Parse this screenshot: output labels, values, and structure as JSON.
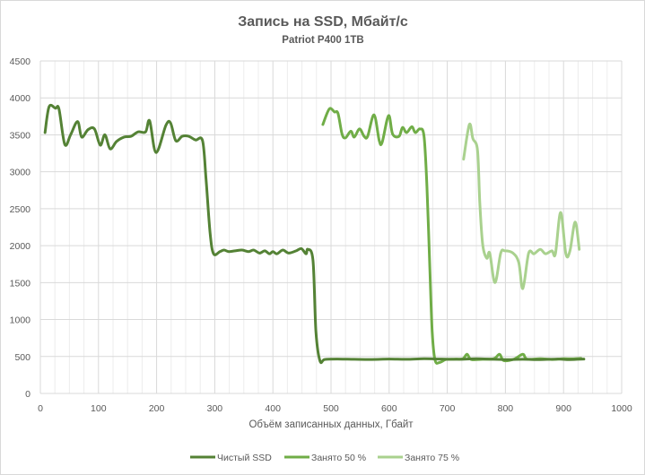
{
  "chart_data": {
    "type": "line",
    "title": "Запись на SSD, Мбайт/с",
    "subtitle": "Patriot P400  1TB",
    "xlabel": "Объём записанных данных, Гбайт",
    "ylabel": "",
    "xlim": [
      0,
      1000
    ],
    "ylim": [
      0,
      4500
    ],
    "xticks": [
      0,
      100,
      200,
      300,
      400,
      500,
      600,
      700,
      800,
      900,
      1000
    ],
    "yticks": [
      0,
      500,
      1000,
      1500,
      2000,
      2500,
      3000,
      3500,
      4000,
      4500
    ],
    "grid": true,
    "legend_position": "bottom",
    "series": [
      {
        "name": "Чистый SSD",
        "color": "#548235",
        "points": [
          [
            8,
            3530
          ],
          [
            15,
            3880
          ],
          [
            26,
            3860
          ],
          [
            32,
            3850
          ],
          [
            42,
            3370
          ],
          [
            52,
            3500
          ],
          [
            64,
            3680
          ],
          [
            71,
            3470
          ],
          [
            82,
            3570
          ],
          [
            93,
            3580
          ],
          [
            103,
            3360
          ],
          [
            111,
            3500
          ],
          [
            120,
            3310
          ],
          [
            131,
            3410
          ],
          [
            144,
            3470
          ],
          [
            156,
            3480
          ],
          [
            168,
            3540
          ],
          [
            181,
            3540
          ],
          [
            188,
            3690
          ],
          [
            199,
            3260
          ],
          [
            216,
            3630
          ],
          [
            224,
            3660
          ],
          [
            233,
            3420
          ],
          [
            244,
            3480
          ],
          [
            255,
            3480
          ],
          [
            267,
            3430
          ],
          [
            279,
            3420
          ],
          [
            285,
            2900
          ],
          [
            292,
            2170
          ],
          [
            298,
            1890
          ],
          [
            309,
            1920
          ],
          [
            316,
            1940
          ],
          [
            324,
            1920
          ],
          [
            335,
            1930
          ],
          [
            347,
            1940
          ],
          [
            358,
            1920
          ],
          [
            367,
            1940
          ],
          [
            377,
            1900
          ],
          [
            386,
            1930
          ],
          [
            394,
            1890
          ],
          [
            400,
            1920
          ],
          [
            407,
            1890
          ],
          [
            417,
            1940
          ],
          [
            427,
            1900
          ],
          [
            440,
            1930
          ],
          [
            449,
            1960
          ],
          [
            457,
            1890
          ],
          [
            460,
            1950
          ],
          [
            469,
            1800
          ],
          [
            474,
            840
          ],
          [
            481,
            440
          ],
          [
            489,
            460
          ],
          [
            510,
            465
          ],
          [
            540,
            462
          ],
          [
            570,
            460
          ],
          [
            600,
            465
          ],
          [
            630,
            462
          ],
          [
            660,
            470
          ],
          [
            690,
            465
          ],
          [
            720,
            462
          ],
          [
            750,
            470
          ],
          [
            780,
            462
          ],
          [
            800,
            458
          ],
          [
            830,
            462
          ],
          [
            860,
            458
          ],
          [
            890,
            465
          ],
          [
            910,
            458
          ],
          [
            935,
            465
          ]
        ]
      },
      {
        "name": "Занято 50 %",
        "color": "#70AD47",
        "points": [
          [
            486,
            3640
          ],
          [
            497,
            3850
          ],
          [
            506,
            3810
          ],
          [
            512,
            3790
          ],
          [
            519,
            3510
          ],
          [
            525,
            3460
          ],
          [
            534,
            3550
          ],
          [
            540,
            3470
          ],
          [
            549,
            3580
          ],
          [
            557,
            3480
          ],
          [
            563,
            3480
          ],
          [
            574,
            3770
          ],
          [
            583,
            3420
          ],
          [
            588,
            3400
          ],
          [
            599,
            3760
          ],
          [
            606,
            3510
          ],
          [
            617,
            3480
          ],
          [
            623,
            3600
          ],
          [
            630,
            3530
          ],
          [
            639,
            3610
          ],
          [
            645,
            3530
          ],
          [
            653,
            3580
          ],
          [
            660,
            3480
          ],
          [
            665,
            2800
          ],
          [
            670,
            1690
          ],
          [
            674,
            840
          ],
          [
            679,
            450
          ],
          [
            687,
            420
          ],
          [
            698,
            460
          ],
          [
            715,
            465
          ],
          [
            727,
            470
          ],
          [
            734,
            530
          ],
          [
            741,
            460
          ],
          [
            760,
            462
          ],
          [
            780,
            470
          ],
          [
            790,
            530
          ],
          [
            797,
            445
          ],
          [
            815,
            465
          ],
          [
            830,
            530
          ],
          [
            837,
            465
          ],
          [
            860,
            470
          ],
          [
            880,
            460
          ],
          [
            900,
            470
          ],
          [
            915,
            468
          ],
          [
            930,
            475
          ]
        ]
      },
      {
        "name": "Занято 75 %",
        "color": "#A9D18E",
        "points": [
          [
            728,
            3170
          ],
          [
            738,
            3640
          ],
          [
            744,
            3450
          ],
          [
            752,
            3290
          ],
          [
            756,
            2570
          ],
          [
            761,
            2010
          ],
          [
            768,
            1830
          ],
          [
            773,
            1900
          ],
          [
            782,
            1500
          ],
          [
            792,
            1900
          ],
          [
            799,
            1930
          ],
          [
            813,
            1900
          ],
          [
            823,
            1770
          ],
          [
            830,
            1420
          ],
          [
            840,
            1900
          ],
          [
            849,
            1890
          ],
          [
            860,
            1950
          ],
          [
            869,
            1890
          ],
          [
            880,
            1930
          ],
          [
            886,
            1890
          ],
          [
            895,
            2450
          ],
          [
            904,
            1890
          ],
          [
            911,
            1930
          ],
          [
            920,
            2320
          ],
          [
            927,
            1950
          ]
        ]
      }
    ]
  }
}
